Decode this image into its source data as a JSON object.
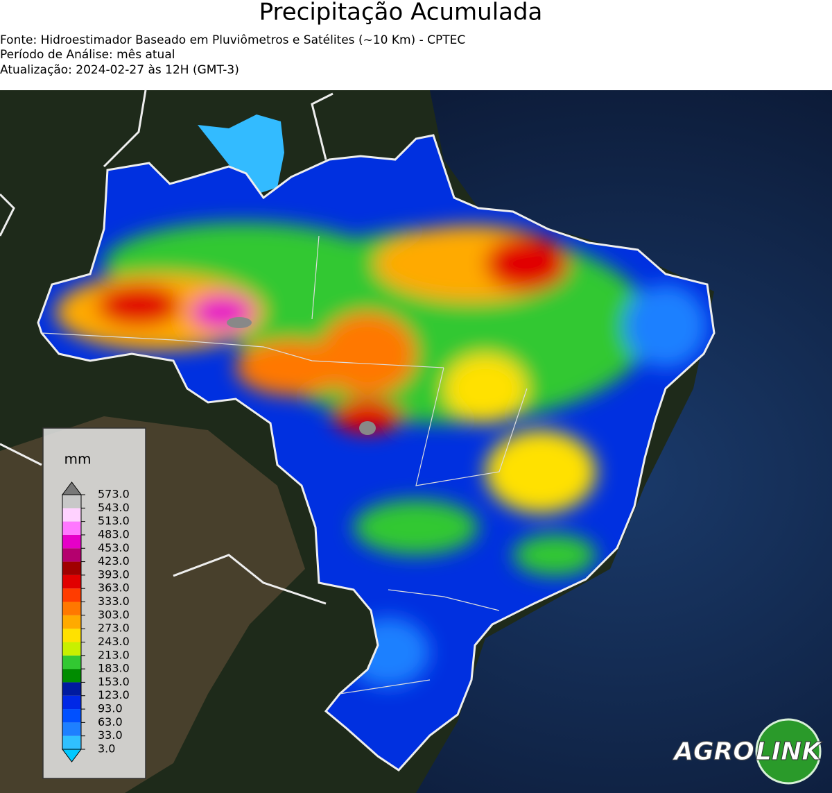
{
  "header": {
    "title": "Precipitação Acumulada",
    "lines": [
      "Fonte: Hidroestimador Baseado em Pluviômetros e Satélites (~10 Km) - CPTEC",
      "Período de Análise: mês atual",
      "Atualização: 2024-02-27 às 12H (GMT-3)"
    ]
  },
  "colorbar": {
    "unit": "mm",
    "ticks": [
      {
        "value": 3,
        "label": "3.0"
      },
      {
        "value": 33,
        "label": "33.0"
      },
      {
        "value": 63,
        "label": "63.0"
      },
      {
        "value": 93,
        "label": "93.0"
      },
      {
        "value": 123,
        "label": "123.0"
      },
      {
        "value": 153,
        "label": "153.0"
      },
      {
        "value": 183,
        "label": "183.0"
      },
      {
        "value": 213,
        "label": "213.0"
      },
      {
        "value": 243,
        "label": "243.0"
      },
      {
        "value": 273,
        "label": "273.0"
      },
      {
        "value": 303,
        "label": "303.0"
      },
      {
        "value": 333,
        "label": "333.0"
      },
      {
        "value": 363,
        "label": "363.0"
      },
      {
        "value": 393,
        "label": "393.0"
      },
      {
        "value": 423,
        "label": "423.0"
      },
      {
        "value": 453,
        "label": "453.0"
      },
      {
        "value": 483,
        "label": "483.0"
      },
      {
        "value": 513,
        "label": "513.0"
      },
      {
        "value": 543,
        "label": "543.0"
      },
      {
        "value": 573,
        "label": "573.0"
      }
    ],
    "colors": [
      "#30c0ff",
      "#1e80ff",
      "#0050ff",
      "#0028e6",
      "#001aa0",
      "#008c00",
      "#32c832",
      "#c8f000",
      "#ffe100",
      "#ffaa00",
      "#ff7800",
      "#ff3c00",
      "#e10000",
      "#a00000",
      "#b4006e",
      "#e600c8",
      "#ff78ff",
      "#ffd2ff",
      "#c8c8c8"
    ],
    "under_color": "#00c8ff",
    "over_color": "#787878"
  },
  "logo": {
    "left": "AGRO",
    "right": "LINK"
  }
}
